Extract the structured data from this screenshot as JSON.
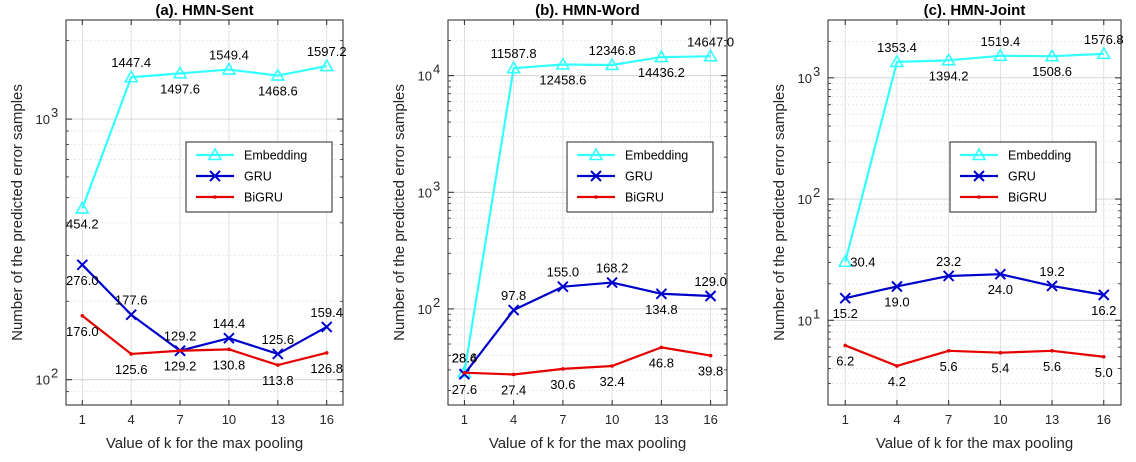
{
  "colors": {
    "Embedding": "#33ffff",
    "GRU": "#0000cc",
    "BiGRU": "#e50000"
  },
  "chart_data": [
    {
      "type": "line",
      "title": "(a). HMN-Sent",
      "xlabel": "Value of k for the max pooling",
      "ylabel": "Number of the predicted error samples",
      "yscale": "log",
      "ylim": [
        80,
        2400
      ],
      "x": [
        1,
        4,
        7,
        10,
        13,
        16
      ],
      "xticks": [
        "1",
        "4",
        "7",
        "10",
        "13",
        "16"
      ],
      "yticks": [
        {
          "value": 100,
          "base": "10",
          "exp": "2"
        },
        {
          "value": 1000,
          "base": "10",
          "exp": "3"
        }
      ],
      "grid": true,
      "legend": "center-right",
      "series": [
        {
          "name": "Embedding",
          "values": [
            454.2,
            1447.4,
            1497.6,
            1549.4,
            1468.6,
            1597.2
          ],
          "labels": [
            "454.2",
            "1447.4",
            "1497.6",
            "1549.4",
            "1468.6",
            "1597.2"
          ]
        },
        {
          "name": "GRU",
          "values": [
            276.0,
            177.6,
            129.2,
            144.4,
            125.6,
            159.4
          ],
          "labels": [
            "276.0",
            "177.6",
            "129.2",
            "144.4",
            "125.6",
            "159.4"
          ]
        },
        {
          "name": "BiGRU",
          "values": [
            176.0,
            125.6,
            129.2,
            130.8,
            113.8,
            126.8
          ],
          "labels": [
            "176.0",
            "125.6",
            "129.2",
            "130.8",
            "113.8",
            "126.8"
          ]
        }
      ]
    },
    {
      "type": "line",
      "title": "(b). HMN-Word",
      "xlabel": "Value of k for the max pooling",
      "ylabel": "Number of the predicted error samples",
      "yscale": "log",
      "ylim": [
        15,
        30000
      ],
      "x": [
        1,
        4,
        7,
        10,
        13,
        16
      ],
      "xticks": [
        "1",
        "4",
        "7",
        "10",
        "13",
        "16"
      ],
      "yticks": [
        {
          "value": 100,
          "base": "10",
          "exp": "2"
        },
        {
          "value": 1000,
          "base": "10",
          "exp": "3"
        },
        {
          "value": 10000,
          "base": "10",
          "exp": "4"
        }
      ],
      "grid": true,
      "legend": "center-right",
      "series": [
        {
          "name": "Embedding",
          "values": [
            28.6,
            11587.8,
            12458.6,
            12346.8,
            14436.2,
            14647.0
          ],
          "labels": [
            "28.6",
            "11587.8",
            "12458.6",
            "12346.8",
            "14436.2",
            "14647.0"
          ]
        },
        {
          "name": "GRU",
          "values": [
            27.6,
            97.8,
            155.0,
            168.2,
            134.8,
            129.0
          ],
          "labels": [
            "27.6",
            "97.8",
            "155.0",
            "168.2",
            "134.8",
            "129.0"
          ]
        },
        {
          "name": "BiGRU",
          "values": [
            28.4,
            27.4,
            30.6,
            32.4,
            46.8,
            39.8
          ],
          "labels": [
            "28.4",
            "27.4",
            "30.6",
            "32.4",
            "46.8",
            "39.8"
          ]
        }
      ]
    },
    {
      "type": "line",
      "title": "(c). HMN-Joint",
      "xlabel": "Value of k for the max pooling",
      "ylabel": "Number of the predicted error samples",
      "yscale": "log",
      "ylim": [
        2,
        3000
      ],
      "x": [
        1,
        4,
        7,
        10,
        13,
        16
      ],
      "xticks": [
        "1",
        "4",
        "7",
        "10",
        "13",
        "16"
      ],
      "yticks": [
        {
          "value": 10,
          "base": "10",
          "exp": "1"
        },
        {
          "value": 100,
          "base": "10",
          "exp": "2"
        },
        {
          "value": 1000,
          "base": "10",
          "exp": "3"
        }
      ],
      "grid": true,
      "legend": "center-right",
      "series": [
        {
          "name": "Embedding",
          "values": [
            30.4,
            1353.4,
            1394.2,
            1519.4,
            1508.6,
            1576.8
          ],
          "labels": [
            "30.4",
            "1353.4",
            "1394.2",
            "1519.4",
            "1508.6",
            "1576.8"
          ]
        },
        {
          "name": "GRU",
          "values": [
            15.2,
            19.0,
            23.2,
            24.0,
            19.2,
            16.2
          ],
          "labels": [
            "15.2",
            "19.0",
            "23.2",
            "24.0",
            "19.2",
            "16.2"
          ]
        },
        {
          "name": "BiGRU",
          "values": [
            6.2,
            4.2,
            5.6,
            5.4,
            5.6,
            5.0
          ],
          "labels": [
            "6.2",
            "4.2",
            "5.6",
            "5.4",
            "5.6",
            "5.0"
          ]
        }
      ]
    }
  ]
}
